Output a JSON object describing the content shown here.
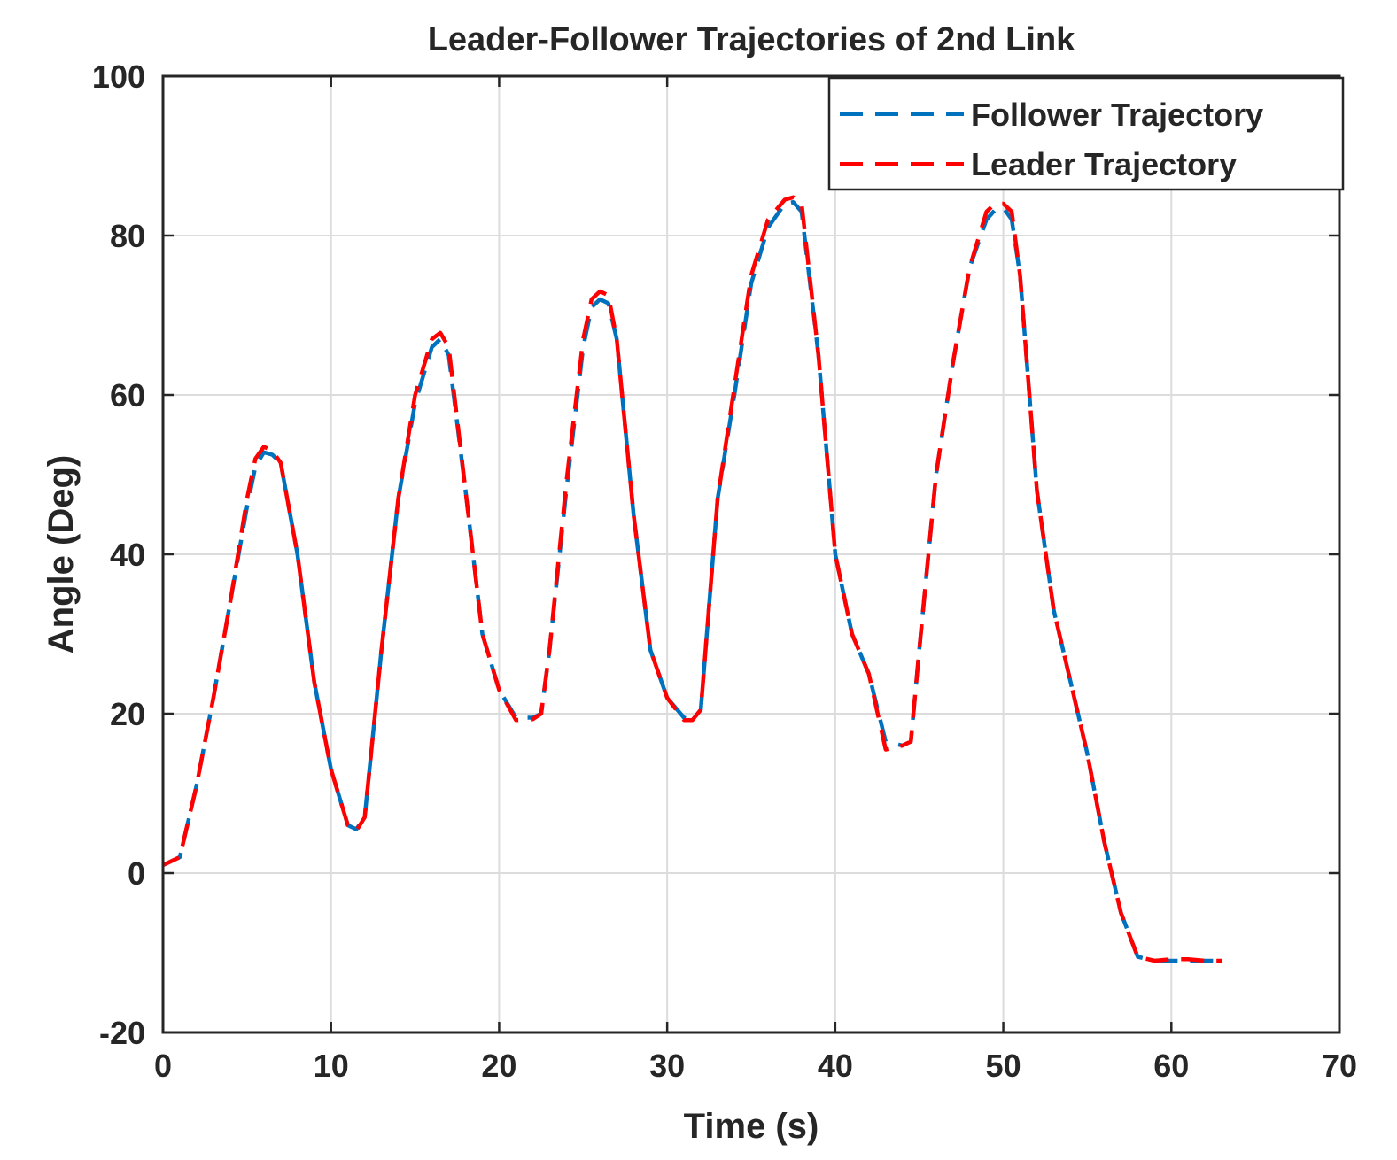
{
  "chart_data": {
    "type": "line",
    "title": "Leader-Follower Trajectories of 2nd Link",
    "xlabel": "Time (s)",
    "ylabel": "Angle (Deg)",
    "xlim": [
      0,
      70
    ],
    "ylim": [
      -20,
      100
    ],
    "xticks": [
      0,
      10,
      20,
      30,
      40,
      50,
      60,
      70
    ],
    "yticks": [
      -20,
      0,
      20,
      40,
      60,
      80,
      100
    ],
    "xtick_labels": [
      "0",
      "10",
      "20",
      "30",
      "40",
      "50",
      "60",
      "70"
    ],
    "ytick_labels": [
      "-20",
      "0",
      "20",
      "40",
      "60",
      "80",
      "100"
    ],
    "grid": true,
    "legend_position": "top-right",
    "series": [
      {
        "name": "Follower Trajectory",
        "color": "#0072BD",
        "style": "dashed",
        "x": [
          0,
          1,
          2,
          3,
          4,
          5,
          5.5,
          6,
          6.5,
          7,
          8,
          9,
          10,
          11,
          11.5,
          12,
          13,
          14,
          15,
          16,
          16.5,
          17,
          18,
          19,
          20,
          21,
          22,
          22.5,
          23,
          24,
          25,
          25.5,
          26,
          26.5,
          27,
          28,
          29,
          30,
          31,
          31.5,
          32,
          33,
          34,
          35,
          36,
          37,
          37.5,
          38,
          39,
          40,
          41,
          42,
          43,
          44,
          44.5,
          45,
          46,
          47,
          48,
          49,
          49.5,
          50,
          50.5,
          51,
          52,
          53,
          54,
          55,
          56,
          57,
          58,
          59,
          60,
          61,
          62,
          63
        ],
        "y": [
          1,
          2,
          11,
          22,
          34,
          46,
          51,
          52.8,
          52.5,
          51.5,
          40,
          24,
          13,
          6,
          5.5,
          7,
          28,
          47,
          59,
          66,
          67,
          65,
          48,
          30,
          23,
          19.5,
          19.5,
          20,
          28,
          48,
          66,
          71,
          72,
          71.5,
          67,
          45,
          28,
          22,
          19.5,
          19.2,
          20.5,
          47,
          60,
          74,
          81,
          84,
          84.2,
          83,
          65,
          40,
          30,
          25,
          16.5,
          16,
          16.5,
          28,
          50,
          64,
          76,
          82,
          83.2,
          83.5,
          82,
          75,
          48,
          33,
          24,
          15,
          4,
          -5,
          -10.5,
          -11,
          -11,
          -11,
          -11,
          -11
        ]
      },
      {
        "name": "Leader Trajectory",
        "color": "#FF0000",
        "style": "dashed",
        "x": [
          0,
          1,
          2,
          3,
          4,
          5,
          5.5,
          6,
          6.5,
          7,
          8,
          9,
          10,
          11,
          11.5,
          12,
          13,
          14,
          15,
          16,
          16.5,
          17,
          18,
          19,
          20,
          21,
          22,
          22.5,
          23,
          24,
          25,
          25.5,
          26,
          26.5,
          27,
          28,
          29,
          30,
          31,
          31.5,
          32,
          33,
          34,
          35,
          36,
          37,
          37.5,
          38,
          39,
          40,
          41,
          42,
          43,
          44,
          44.5,
          45,
          46,
          47,
          48,
          49,
          49.5,
          50,
          50.5,
          51,
          52,
          53,
          54,
          55,
          56,
          57,
          58,
          59,
          60,
          61,
          62,
          63
        ],
        "y": [
          1,
          2,
          11,
          22,
          34,
          47,
          52,
          53.5,
          53,
          51.5,
          40,
          24,
          13,
          6,
          5.3,
          7,
          28,
          47,
          60,
          67,
          67.8,
          66,
          48,
          30,
          23,
          19.2,
          19.3,
          20,
          28,
          49,
          67,
          72,
          73,
          72.5,
          67,
          45,
          28,
          22,
          19.2,
          19.2,
          20.5,
          47,
          61,
          75,
          82,
          84.5,
          84.8,
          84,
          65,
          40,
          30,
          25,
          15.5,
          16,
          16.5,
          28,
          50,
          64,
          76,
          83,
          84,
          84,
          83,
          75,
          48,
          33,
          24,
          15,
          4,
          -5,
          -10.5,
          -11,
          -10.8,
          -10.8,
          -11,
          -11
        ]
      }
    ]
  }
}
